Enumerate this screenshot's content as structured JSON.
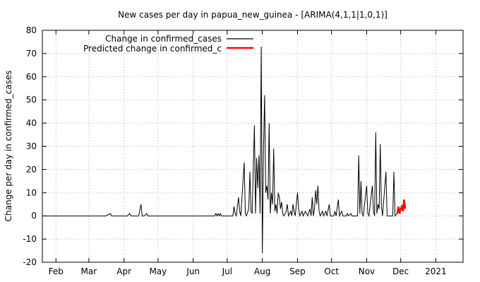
{
  "chart_data": {
    "type": "line",
    "title": "New cases per day in papua_new_guinea -  [ARIMA(4,1,1|1,0,1)]",
    "ylabel": "Change per day in confirmed_cases",
    "xlabel": "",
    "ylim": [
      -20,
      80
    ],
    "yticks": [
      -20,
      -10,
      0,
      10,
      20,
      30,
      40,
      50,
      60,
      70,
      80
    ],
    "x_range": [
      "2020-01-20",
      "2021-01-25"
    ],
    "x_ticks": [
      {
        "date": "2020-02-01",
        "label": "Feb"
      },
      {
        "date": "2020-03-01",
        "label": "Mar"
      },
      {
        "date": "2020-04-01",
        "label": "Apr"
      },
      {
        "date": "2020-05-01",
        "label": "May"
      },
      {
        "date": "2020-06-01",
        "label": "Jun"
      },
      {
        "date": "2020-07-01",
        "label": "Jul"
      },
      {
        "date": "2020-08-01",
        "label": "Aug"
      },
      {
        "date": "2020-09-01",
        "label": "Sep"
      },
      {
        "date": "2020-10-01",
        "label": "Oct"
      },
      {
        "date": "2020-11-01",
        "label": "Nov"
      },
      {
        "date": "2020-12-01",
        "label": "Dec"
      },
      {
        "date": "2021-01-01",
        "label": "2021"
      }
    ],
    "grid": true,
    "legend_position": "top-left",
    "series": [
      {
        "name": "Change in confirmed_cases",
        "color": "#000000",
        "points": [
          [
            "2020-01-22",
            0
          ],
          [
            "2020-03-16",
            0
          ],
          [
            "2020-03-20",
            1
          ],
          [
            "2020-03-21",
            0
          ],
          [
            "2020-04-04",
            0
          ],
          [
            "2020-04-06",
            1
          ],
          [
            "2020-04-07",
            0
          ],
          [
            "2020-04-14",
            0
          ],
          [
            "2020-04-16",
            5
          ],
          [
            "2020-04-17",
            0
          ],
          [
            "2020-04-19",
            0
          ],
          [
            "2020-04-21",
            1
          ],
          [
            "2020-04-22",
            0
          ],
          [
            "2020-06-20",
            0
          ],
          [
            "2020-06-21",
            1
          ],
          [
            "2020-06-22",
            0
          ],
          [
            "2020-06-23",
            1
          ],
          [
            "2020-06-24",
            0
          ],
          [
            "2020-06-25",
            1
          ],
          [
            "2020-06-26",
            0
          ],
          [
            "2020-07-06",
            0
          ],
          [
            "2020-07-07",
            4
          ],
          [
            "2020-07-08",
            1
          ],
          [
            "2020-07-09",
            0
          ],
          [
            "2020-07-11",
            8
          ],
          [
            "2020-07-12",
            2
          ],
          [
            "2020-07-13",
            0
          ],
          [
            "2020-07-16",
            23
          ],
          [
            "2020-07-17",
            1
          ],
          [
            "2020-07-18",
            0
          ],
          [
            "2020-07-20",
            3
          ],
          [
            "2020-07-21",
            19
          ],
          [
            "2020-07-22",
            2
          ],
          [
            "2020-07-23",
            1
          ],
          [
            "2020-07-25",
            39
          ],
          [
            "2020-07-26",
            1
          ],
          [
            "2020-07-27",
            25
          ],
          [
            "2020-07-28",
            12
          ],
          [
            "2020-07-29",
            26
          ],
          [
            "2020-07-30",
            1
          ],
          [
            "2020-07-31",
            73
          ],
          [
            "2020-08-01",
            -16
          ],
          [
            "2020-08-02",
            28
          ],
          [
            "2020-08-03",
            52
          ],
          [
            "2020-08-04",
            10
          ],
          [
            "2020-08-05",
            13
          ],
          [
            "2020-08-06",
            7
          ],
          [
            "2020-08-07",
            40
          ],
          [
            "2020-08-08",
            1
          ],
          [
            "2020-08-09",
            10
          ],
          [
            "2020-08-10",
            5
          ],
          [
            "2020-08-11",
            29
          ],
          [
            "2020-08-12",
            2
          ],
          [
            "2020-08-13",
            5
          ],
          [
            "2020-08-14",
            1
          ],
          [
            "2020-08-15",
            10
          ],
          [
            "2020-08-16",
            8
          ],
          [
            "2020-08-17",
            3
          ],
          [
            "2020-08-18",
            6
          ],
          [
            "2020-08-19",
            1
          ],
          [
            "2020-08-20",
            0
          ],
          [
            "2020-08-22",
            2
          ],
          [
            "2020-08-23",
            5
          ],
          [
            "2020-08-24",
            0
          ],
          [
            "2020-08-26",
            2
          ],
          [
            "2020-08-27",
            0
          ],
          [
            "2020-08-28",
            5
          ],
          [
            "2020-08-29",
            2
          ],
          [
            "2020-08-30",
            0
          ],
          [
            "2020-09-01",
            10
          ],
          [
            "2020-09-02",
            3
          ],
          [
            "2020-09-03",
            0
          ],
          [
            "2020-09-05",
            2
          ],
          [
            "2020-09-06",
            0
          ],
          [
            "2020-09-08",
            2
          ],
          [
            "2020-09-09",
            1
          ],
          [
            "2020-09-10",
            0
          ],
          [
            "2020-09-12",
            3
          ],
          [
            "2020-09-13",
            0
          ],
          [
            "2020-09-14",
            8
          ],
          [
            "2020-09-15",
            0
          ],
          [
            "2020-09-16",
            3
          ],
          [
            "2020-09-17",
            11
          ],
          [
            "2020-09-18",
            5
          ],
          [
            "2020-09-19",
            13
          ],
          [
            "2020-09-20",
            2
          ],
          [
            "2020-09-21",
            0
          ],
          [
            "2020-09-23",
            2
          ],
          [
            "2020-09-24",
            0
          ],
          [
            "2020-09-26",
            2
          ],
          [
            "2020-09-27",
            0
          ],
          [
            "2020-09-29",
            5
          ],
          [
            "2020-09-30",
            0
          ],
          [
            "2020-10-03",
            0
          ],
          [
            "2020-10-04",
            2
          ],
          [
            "2020-10-05",
            0
          ],
          [
            "2020-10-07",
            7
          ],
          [
            "2020-10-08",
            0
          ],
          [
            "2020-10-10",
            2
          ],
          [
            "2020-10-11",
            0
          ],
          [
            "2020-10-14",
            0
          ],
          [
            "2020-10-15",
            1
          ],
          [
            "2020-10-16",
            0
          ],
          [
            "2020-10-18",
            1
          ],
          [
            "2020-10-19",
            0
          ],
          [
            "2020-10-24",
            0
          ],
          [
            "2020-10-25",
            26
          ],
          [
            "2020-10-26",
            1
          ],
          [
            "2020-10-27",
            15
          ],
          [
            "2020-10-28",
            1
          ],
          [
            "2020-10-29",
            0
          ],
          [
            "2020-11-01",
            13
          ],
          [
            "2020-11-02",
            1
          ],
          [
            "2020-11-03",
            0
          ],
          [
            "2020-11-06",
            13
          ],
          [
            "2020-11-07",
            2
          ],
          [
            "2020-11-08",
            0
          ],
          [
            "2020-11-09",
            36
          ],
          [
            "2020-11-10",
            1
          ],
          [
            "2020-11-11",
            5
          ],
          [
            "2020-11-12",
            3
          ],
          [
            "2020-11-13",
            31
          ],
          [
            "2020-11-14",
            4
          ],
          [
            "2020-11-15",
            0
          ],
          [
            "2020-11-18",
            19
          ],
          [
            "2020-11-19",
            0
          ],
          [
            "2020-11-24",
            0
          ],
          [
            "2020-11-25",
            19
          ],
          [
            "2020-11-26",
            0
          ],
          [
            "2020-11-28",
            1
          ]
        ]
      },
      {
        "name": "Predicted change in confirmed_c",
        "color": "#ff0000",
        "points": [
          [
            "2020-11-28",
            1
          ],
          [
            "2020-11-29",
            4
          ],
          [
            "2020-11-30",
            1
          ],
          [
            "2020-12-01",
            3
          ],
          [
            "2020-12-02",
            4
          ],
          [
            "2020-12-03",
            2
          ],
          [
            "2020-12-04",
            7
          ],
          [
            "2020-12-05",
            3
          ]
        ]
      }
    ]
  }
}
